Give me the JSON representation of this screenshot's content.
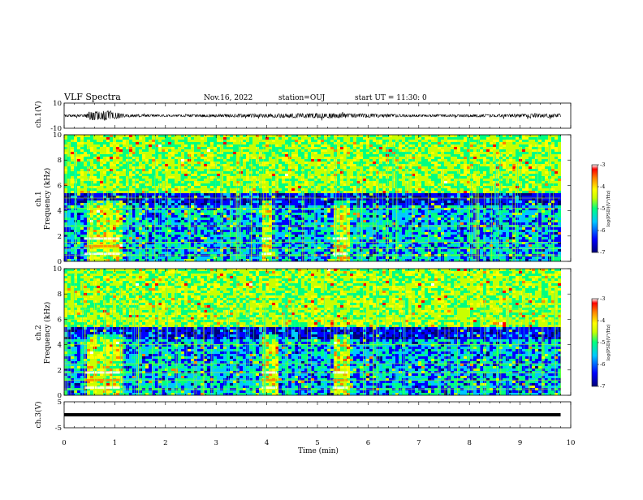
{
  "header": {
    "title": "VLF Spectra",
    "date": "Nov.16, 2022",
    "station": "station=OUJ",
    "start": "start UT =  11:30: 0"
  },
  "chart_data": [
    {
      "type": "line",
      "panel": "ch1-waveform",
      "ylabel": "ch.1(V)",
      "ylim": [
        -10,
        10
      ],
      "ytick_labels": [
        "10",
        "-10"
      ],
      "xlim": [
        0,
        10
      ],
      "description_points": {
        "t_min": [
          0.0,
          0.4,
          0.5,
          0.7,
          0.9,
          1.0,
          1.2,
          2.0,
          4.0,
          5.3,
          7.0,
          9.8
        ],
        "amplitude_V": [
          0.8,
          1.0,
          3.5,
          3.5,
          4.0,
          3.0,
          1.2,
          0.8,
          1.5,
          2.0,
          0.8,
          1.5
        ]
      }
    },
    {
      "type": "heatmap",
      "panel": "ch1-spectrogram",
      "ylabel": "Frequency (kHz)",
      "channel_label": "ch.1",
      "ylim": [
        0,
        10
      ],
      "ytick_labels": [
        "0",
        "2",
        "4",
        "6",
        "8",
        "10"
      ],
      "xlim": [
        0,
        10
      ],
      "colorbar": {
        "label": "log(PSD)(V²/Hz)",
        "range": [
          -7,
          -3
        ],
        "tick_labels": [
          "-3",
          "-4",
          "-5",
          "-6",
          "-7"
        ]
      },
      "bands_kHz": [
        0.5,
        1.0,
        1.5,
        2.8,
        4.2,
        5.0
      ],
      "bright_segments_min": [
        [
          0.4,
          1.1
        ],
        [
          3.9,
          4.1
        ],
        [
          5.3,
          5.6
        ]
      ]
    },
    {
      "type": "heatmap",
      "panel": "ch2-spectrogram",
      "ylabel": "Frequency (kHz)",
      "channel_label": "ch.2",
      "ylim": [
        0,
        10
      ],
      "ytick_labels": [
        "0",
        "2",
        "4",
        "6",
        "8",
        "10"
      ],
      "xlim": [
        0,
        10
      ],
      "colorbar": {
        "label": "log(PSD)(V²/Hz)",
        "range": [
          -7,
          -3
        ],
        "tick_labels": [
          "-3",
          "-4",
          "-5",
          "-6",
          "-7"
        ]
      },
      "bands_kHz": [
        0.5,
        1.2,
        1.8,
        2.5,
        4.0,
        6.0,
        6.8
      ],
      "bright_segments_min": [
        [
          0.4,
          1.1
        ],
        [
          3.9,
          4.2
        ],
        [
          5.3,
          5.6
        ]
      ]
    },
    {
      "type": "line",
      "panel": "ch3-waveform",
      "ylabel": "ch.3(V)",
      "ylim": [
        -5,
        5
      ],
      "ytick_labels": [
        "5",
        "-5"
      ],
      "xlim": [
        0,
        10
      ],
      "level_V": 0
    }
  ],
  "x_axis": {
    "label": "Time (min)",
    "tick_labels": [
      "0",
      "1",
      "2",
      "3",
      "4",
      "5",
      "6",
      "7",
      "8",
      "9",
      "10"
    ],
    "data_end_min": 9.8
  },
  "colors": {
    "background": "#ffffff",
    "waveform": "#000000",
    "colormap": [
      "#00007a",
      "#0000ff",
      "#00c8ff",
      "#00ff80",
      "#c8ff00",
      "#ffff00",
      "#ff8000",
      "#ff0000",
      "#ffffff"
    ]
  }
}
